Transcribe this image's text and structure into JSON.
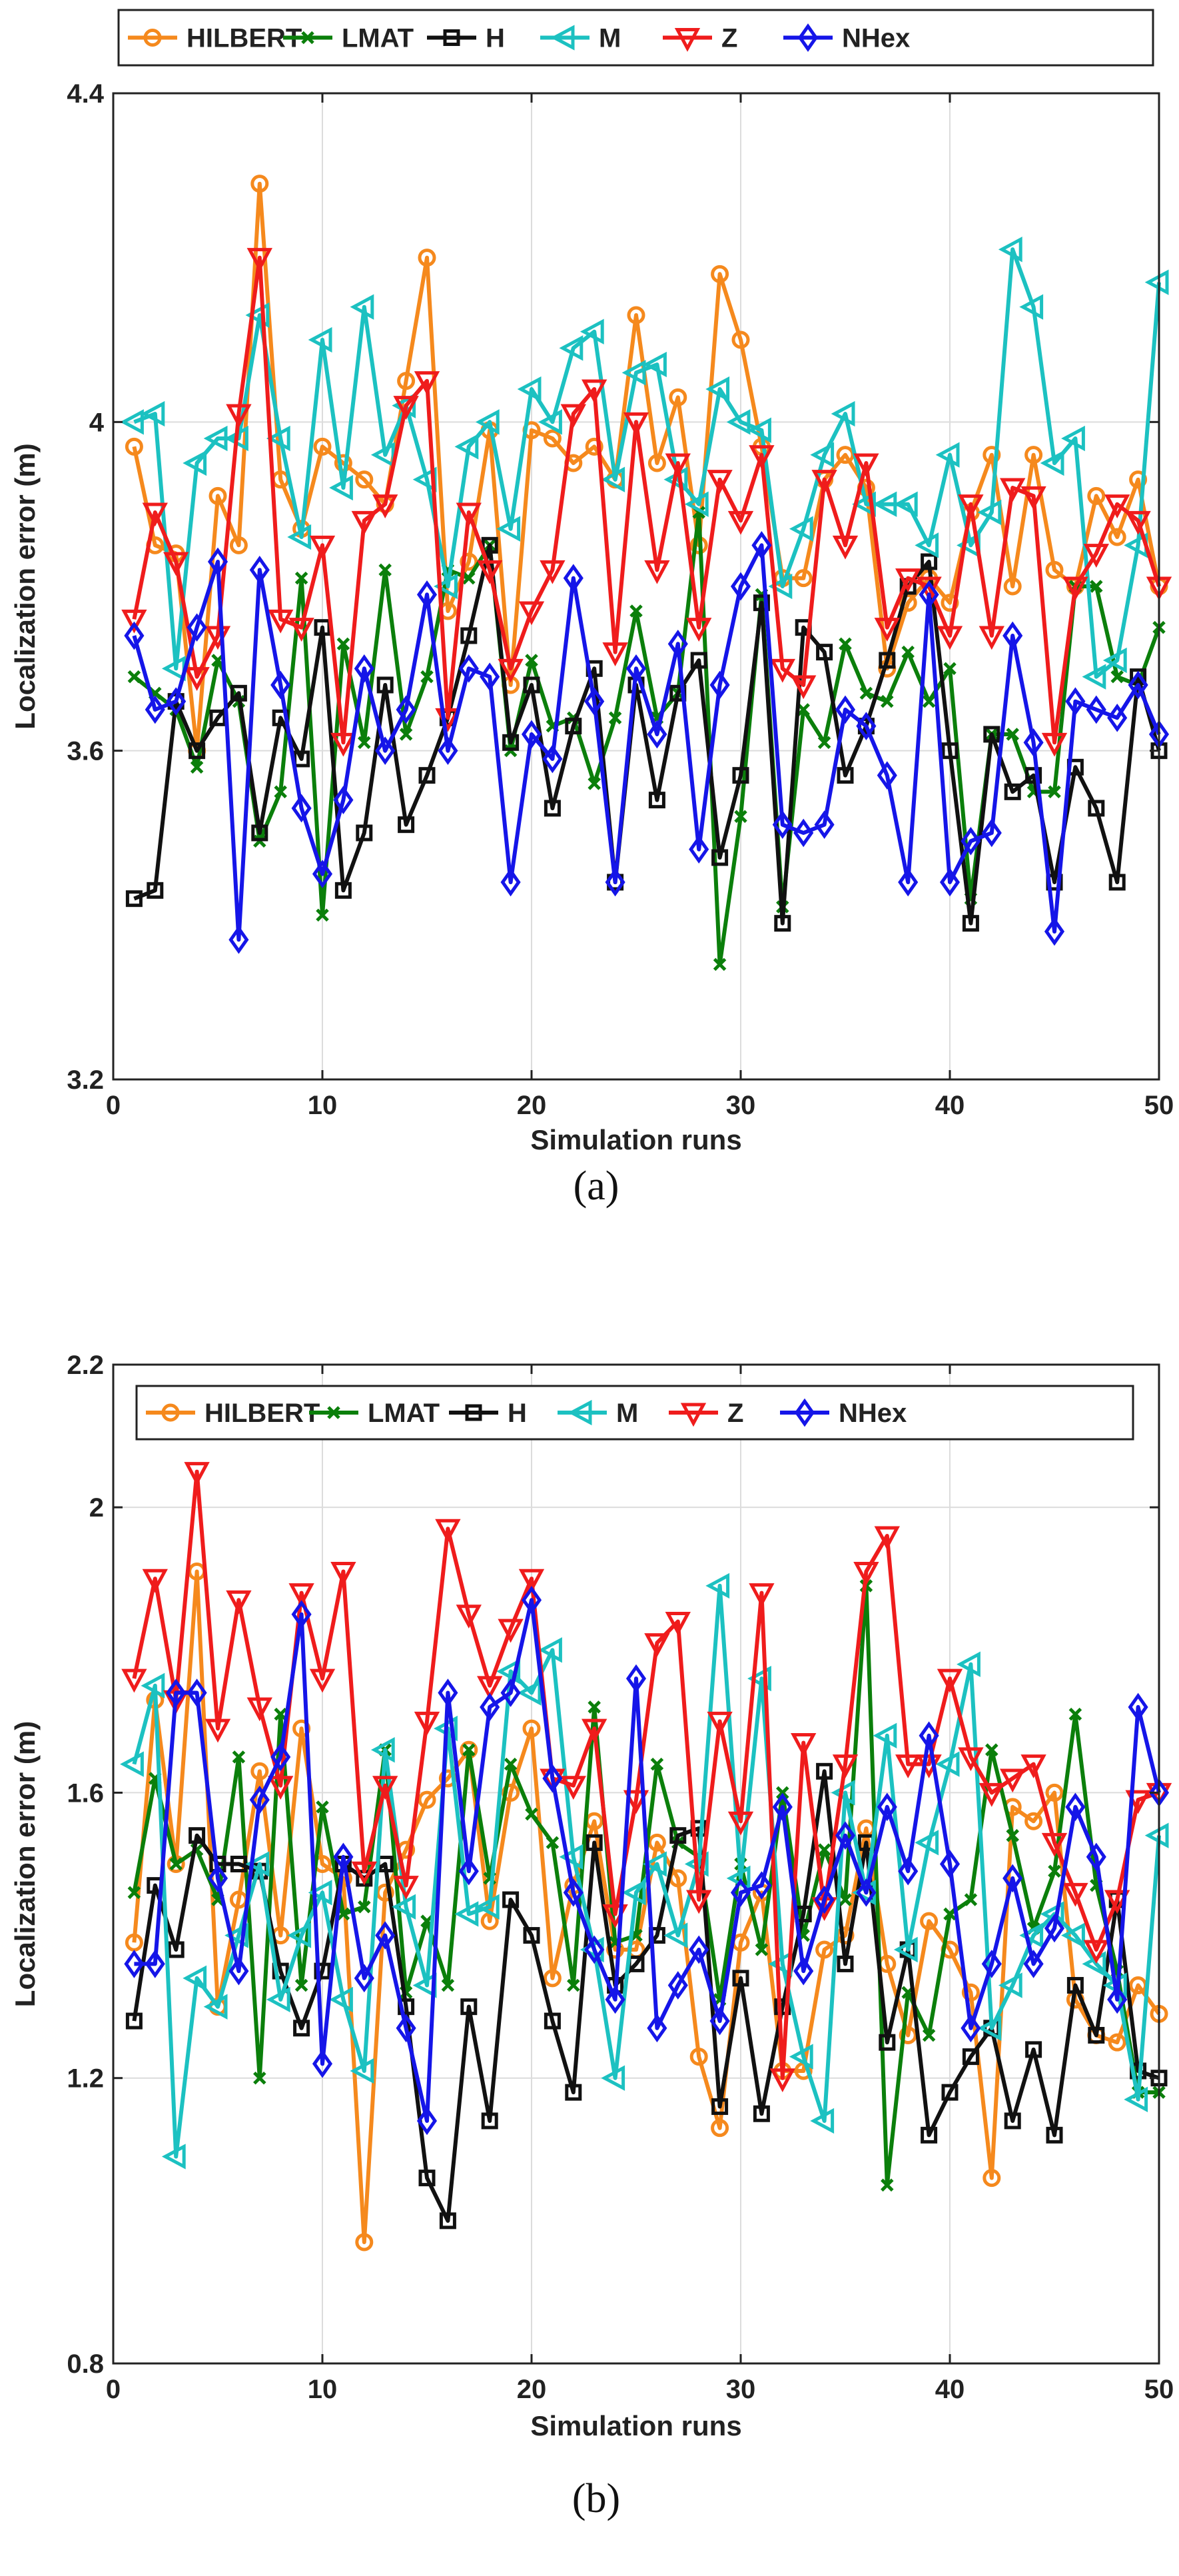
{
  "chart_data": [
    {
      "type": "line",
      "panel_label": "(a)",
      "xlabel": "Simulation runs",
      "ylabel": "Localization error (m)",
      "xlim": [
        0,
        50
      ],
      "ylim": [
        3.2,
        4.4
      ],
      "xticks": [
        0,
        10,
        20,
        30,
        40,
        50
      ],
      "yticks": [
        3.2,
        3.6,
        4,
        4.4
      ],
      "xtick_labels": [
        "0",
        "10",
        "20",
        "30",
        "40",
        "50"
      ],
      "ytick_labels": [
        "3.2",
        "3.6",
        "4",
        "4.4"
      ],
      "grid": true,
      "legend_position": "top",
      "x": [
        1,
        2,
        3,
        4,
        5,
        6,
        7,
        8,
        9,
        10,
        11,
        12,
        13,
        14,
        15,
        16,
        17,
        18,
        19,
        20,
        21,
        22,
        23,
        24,
        25,
        26,
        27,
        28,
        29,
        30,
        31,
        32,
        33,
        34,
        35,
        36,
        37,
        38,
        39,
        40,
        41,
        42,
        43,
        44,
        45,
        46,
        47,
        48,
        49,
        50
      ],
      "series": [
        {
          "name": "HILBERT",
          "values": [
            3.97,
            3.85,
            3.84,
            3.6,
            3.91,
            3.85,
            4.29,
            3.93,
            3.87,
            3.97,
            3.95,
            3.93,
            3.9,
            4.05,
            4.2,
            3.77,
            3.83,
            3.99,
            3.68,
            3.99,
            3.98,
            3.95,
            3.97,
            3.93,
            4.13,
            3.95,
            4.03,
            3.85,
            4.18,
            4.1,
            3.97,
            3.81,
            3.81,
            3.93,
            3.96,
            3.92,
            3.7,
            3.78,
            3.81,
            3.78,
            3.89,
            3.96,
            3.8,
            3.96,
            3.82,
            3.8,
            3.91,
            3.86,
            3.93,
            3.8
          ]
        },
        {
          "name": "LMAT",
          "values": [
            3.69,
            3.67,
            3.65,
            3.58,
            3.71,
            3.66,
            3.49,
            3.55,
            3.81,
            3.4,
            3.73,
            3.61,
            3.82,
            3.62,
            3.69,
            3.82,
            3.81,
            3.85,
            3.6,
            3.71,
            3.63,
            3.64,
            3.56,
            3.64,
            3.77,
            3.64,
            3.67,
            3.89,
            3.34,
            3.52,
            3.79,
            3.41,
            3.65,
            3.61,
            3.73,
            3.67,
            3.66,
            3.72,
            3.66,
            3.7,
            3.42,
            3.62,
            3.62,
            3.55,
            3.55,
            3.8,
            3.8,
            3.69,
            3.68,
            3.75
          ]
        },
        {
          "name": "H",
          "values": [
            3.42,
            3.43,
            3.66,
            3.6,
            3.64,
            3.67,
            3.5,
            3.64,
            3.59,
            3.75,
            3.43,
            3.5,
            3.68,
            3.51,
            3.57,
            3.64,
            3.74,
            3.85,
            3.61,
            3.68,
            3.53,
            3.63,
            3.7,
            3.44,
            3.68,
            3.54,
            3.67,
            3.71,
            3.47,
            3.57,
            3.78,
            3.39,
            3.75,
            3.72,
            3.57,
            3.63,
            3.71,
            3.8,
            3.83,
            3.6,
            3.39,
            3.62,
            3.55,
            3.57,
            3.44,
            3.58,
            3.53,
            3.44,
            3.69,
            3.6
          ]
        },
        {
          "name": "M",
          "values": [
            4.0,
            4.01,
            3.7,
            3.95,
            3.98,
            3.98,
            4.13,
            3.98,
            3.86,
            4.1,
            3.92,
            4.14,
            3.96,
            4.02,
            3.93,
            3.8,
            3.97,
            4.0,
            3.87,
            4.04,
            4.0,
            4.09,
            4.11,
            3.93,
            4.06,
            4.07,
            3.93,
            3.9,
            4.04,
            4.0,
            3.99,
            3.8,
            3.87,
            3.96,
            4.01,
            3.9,
            3.9,
            3.9,
            3.85,
            3.96,
            3.85,
            3.89,
            4.21,
            4.14,
            3.95,
            3.98,
            3.69,
            3.71,
            3.85,
            4.17
          ]
        },
        {
          "name": "Z",
          "values": [
            3.76,
            3.89,
            3.83,
            3.69,
            3.74,
            4.01,
            4.2,
            3.76,
            3.75,
            3.85,
            3.61,
            3.88,
            3.9,
            4.02,
            4.05,
            3.64,
            3.89,
            3.82,
            3.7,
            3.77,
            3.82,
            4.01,
            4.04,
            3.72,
            4.0,
            3.82,
            3.95,
            3.75,
            3.93,
            3.88,
            3.96,
            3.7,
            3.68,
            3.93,
            3.85,
            3.95,
            3.75,
            3.81,
            3.8,
            3.74,
            3.9,
            3.74,
            3.92,
            3.91,
            3.61,
            3.8,
            3.84,
            3.9,
            3.88,
            3.8
          ]
        },
        {
          "name": "NHex",
          "values": [
            3.74,
            3.65,
            3.66,
            3.75,
            3.83,
            3.37,
            3.82,
            3.68,
            3.53,
            3.45,
            3.54,
            3.7,
            3.6,
            3.65,
            3.79,
            3.6,
            3.7,
            3.69,
            3.44,
            3.62,
            3.59,
            3.81,
            3.66,
            3.44,
            3.7,
            3.62,
            3.73,
            3.48,
            3.68,
            3.8,
            3.85,
            3.51,
            3.5,
            3.51,
            3.65,
            3.63,
            3.57,
            3.44,
            3.79,
            3.44,
            3.49,
            3.5,
            3.74,
            3.61,
            3.38,
            3.66,
            3.65,
            3.64,
            3.68,
            3.62
          ]
        }
      ]
    },
    {
      "type": "line",
      "panel_label": "(b)",
      "xlabel": "Simulation runs",
      "ylabel": "Localization error (m)",
      "xlim": [
        0,
        50
      ],
      "ylim": [
        0.8,
        2.2
      ],
      "xticks": [
        0,
        10,
        20,
        30,
        40,
        50
      ],
      "yticks": [
        0.8,
        1.2,
        1.6,
        2,
        2.2
      ],
      "xtick_labels": [
        "0",
        "10",
        "20",
        "30",
        "40",
        "50"
      ],
      "ytick_labels": [
        "0.8",
        "1.2",
        "1.6",
        "2",
        "2.2"
      ],
      "grid": true,
      "legend_position": "top",
      "x": [
        1,
        2,
        3,
        4,
        5,
        6,
        7,
        8,
        9,
        10,
        11,
        12,
        13,
        14,
        15,
        16,
        17,
        18,
        19,
        20,
        21,
        22,
        23,
        24,
        25,
        26,
        27,
        28,
        29,
        30,
        31,
        32,
        33,
        34,
        35,
        36,
        37,
        38,
        39,
        40,
        41,
        42,
        43,
        44,
        45,
        46,
        47,
        48,
        49,
        50
      ],
      "series": [
        {
          "name": "HILBERT",
          "values": [
            1.39,
            1.73,
            1.5,
            1.91,
            1.3,
            1.45,
            1.63,
            1.4,
            1.69,
            1.5,
            1.48,
            0.97,
            1.46,
            1.52,
            1.59,
            1.62,
            1.66,
            1.42,
            1.6,
            1.69,
            1.34,
            1.47,
            1.56,
            1.38,
            1.38,
            1.53,
            1.48,
            1.23,
            1.13,
            1.39,
            1.46,
            1.21,
            1.21,
            1.38,
            1.4,
            1.55,
            1.36,
            1.26,
            1.42,
            1.38,
            1.32,
            1.06,
            1.58,
            1.56,
            1.6,
            1.31,
            1.26,
            1.25,
            1.33,
            1.29
          ]
        },
        {
          "name": "LMAT",
          "values": [
            1.46,
            1.62,
            1.5,
            1.52,
            1.45,
            1.65,
            1.2,
            1.71,
            1.33,
            1.58,
            1.43,
            1.44,
            1.66,
            1.32,
            1.42,
            1.33,
            1.66,
            1.48,
            1.64,
            1.57,
            1.53,
            1.33,
            1.72,
            1.39,
            1.4,
            1.64,
            1.53,
            1.51,
            1.31,
            1.5,
            1.38,
            1.6,
            1.4,
            1.52,
            1.45,
            1.89,
            1.05,
            1.32,
            1.26,
            1.43,
            1.45,
            1.66,
            1.54,
            1.41,
            1.49,
            1.71,
            1.47,
            1.35,
            1.18,
            1.18
          ]
        },
        {
          "name": "H",
          "values": [
            1.28,
            1.47,
            1.38,
            1.54,
            1.5,
            1.5,
            1.49,
            1.35,
            1.27,
            1.35,
            1.5,
            1.48,
            1.5,
            1.3,
            1.06,
            1.0,
            1.3,
            1.14,
            1.45,
            1.4,
            1.28,
            1.18,
            1.53,
            1.33,
            1.36,
            1.4,
            1.54,
            1.55,
            1.16,
            1.34,
            1.15,
            1.3,
            1.43,
            1.63,
            1.36,
            1.53,
            1.25,
            1.38,
            1.12,
            1.18,
            1.23,
            1.27,
            1.14,
            1.24,
            1.12,
            1.33,
            1.26,
            1.45,
            1.21,
            1.2
          ]
        },
        {
          "name": "M",
          "values": [
            1.64,
            1.75,
            1.09,
            1.34,
            1.3,
            1.4,
            1.5,
            1.31,
            1.4,
            1.46,
            1.31,
            1.21,
            1.66,
            1.44,
            1.33,
            1.69,
            1.43,
            1.44,
            1.77,
            1.74,
            1.8,
            1.51,
            1.38,
            1.2,
            1.46,
            1.5,
            1.4,
            1.5,
            1.89,
            1.48,
            1.76,
            1.36,
            1.23,
            1.14,
            1.6,
            1.46,
            1.68,
            1.38,
            1.53,
            1.64,
            1.78,
            1.27,
            1.33,
            1.4,
            1.43,
            1.4,
            1.36,
            1.33,
            1.17,
            1.54
          ]
        },
        {
          "name": "Z",
          "values": [
            1.76,
            1.9,
            1.73,
            2.05,
            1.69,
            1.87,
            1.72,
            1.61,
            1.88,
            1.76,
            1.91,
            1.49,
            1.61,
            1.47,
            1.7,
            1.97,
            1.85,
            1.75,
            1.83,
            1.9,
            1.62,
            1.61,
            1.69,
            1.43,
            1.59,
            1.81,
            1.84,
            1.45,
            1.7,
            1.56,
            1.88,
            1.2,
            1.67,
            1.44,
            1.64,
            1.91,
            1.96,
            1.64,
            1.64,
            1.76,
            1.65,
            1.6,
            1.62,
            1.64,
            1.53,
            1.46,
            1.38,
            1.45,
            1.59,
            1.6
          ]
        },
        {
          "name": "NHex",
          "values": [
            1.36,
            1.36,
            1.74,
            1.74,
            1.48,
            1.35,
            1.59,
            1.65,
            1.85,
            1.22,
            1.51,
            1.34,
            1.4,
            1.27,
            1.14,
            1.74,
            1.49,
            1.72,
            1.74,
            1.87,
            1.62,
            1.46,
            1.38,
            1.31,
            1.76,
            1.27,
            1.33,
            1.38,
            1.28,
            1.46,
            1.47,
            1.58,
            1.35,
            1.45,
            1.54,
            1.46,
            1.58,
            1.49,
            1.68,
            1.5,
            1.27,
            1.36,
            1.48,
            1.36,
            1.41,
            1.58,
            1.51,
            1.31,
            1.72,
            1.6
          ]
        }
      ]
    }
  ],
  "styles": {
    "HILBERT": {
      "color": "#f5891d",
      "marker": "circle-icon"
    },
    "LMAT": {
      "color": "#0b7f0b",
      "marker": "x-icon"
    },
    "H": {
      "color": "#111111",
      "marker": "square-icon"
    },
    "M": {
      "color": "#1cc1c1",
      "marker": "triangle-left-icon"
    },
    "Z": {
      "color": "#ef1c1c",
      "marker": "triangle-down-icon"
    },
    "NHex": {
      "color": "#1515e8",
      "marker": "diamond-icon"
    }
  }
}
